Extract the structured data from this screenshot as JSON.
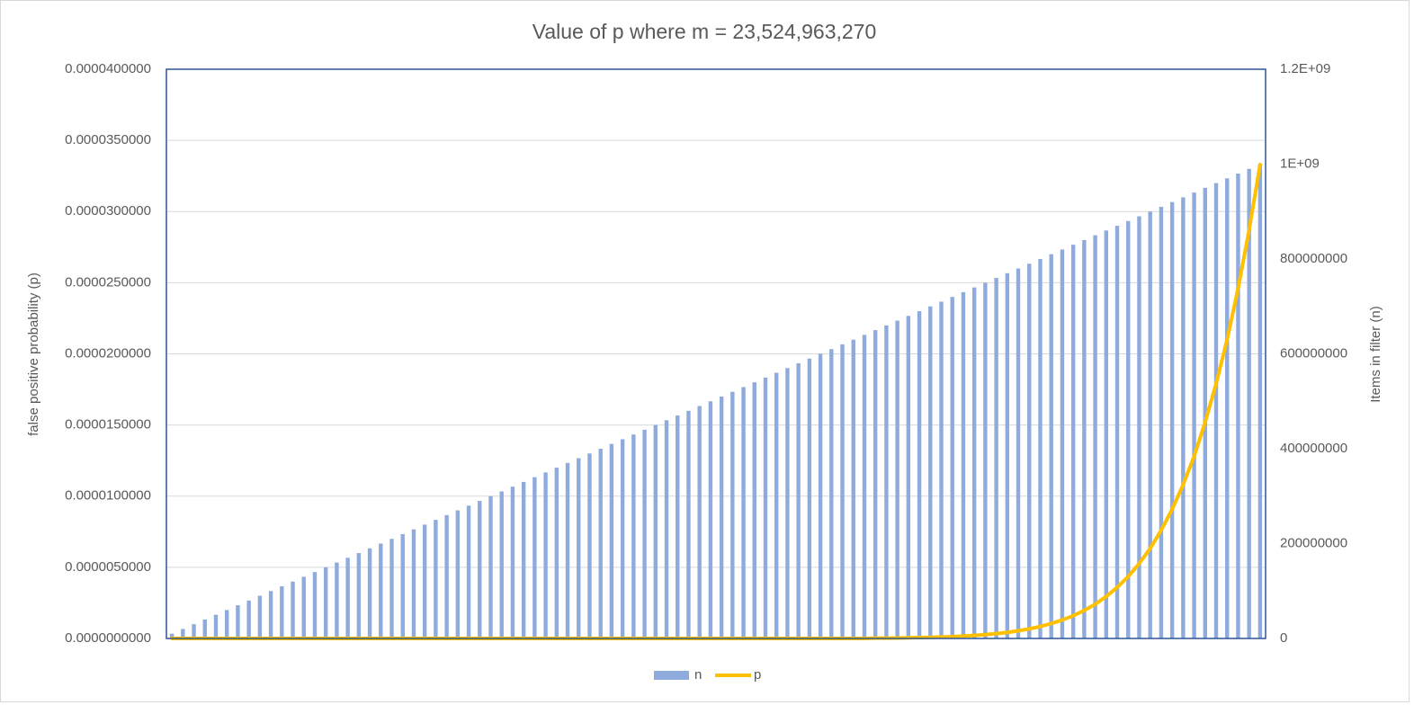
{
  "chart_data": {
    "type": "bar",
    "title": "Value of p where m = 23,524,963,270",
    "y_label": "false positive probability (p)",
    "y2_label": "Items in filter (n)",
    "categories": [
      null,
      null,
      null,
      null,
      null,
      null,
      null,
      null,
      null,
      null,
      null,
      null,
      null,
      null,
      null,
      null,
      null,
      null,
      null,
      null,
      null,
      null,
      null,
      null,
      null,
      null,
      null,
      null,
      null,
      null,
      null,
      null,
      null,
      null,
      null,
      null,
      null,
      null,
      null,
      null,
      null,
      null,
      null,
      null,
      null,
      null,
      null,
      null,
      null,
      null,
      null,
      null,
      null,
      null,
      null,
      null,
      null,
      null,
      null,
      null,
      null,
      null,
      null,
      null,
      null,
      null,
      null,
      null,
      null,
      null,
      null,
      null,
      null,
      null,
      null,
      null,
      null,
      null,
      null,
      null,
      null,
      null,
      null,
      null,
      null,
      null,
      null,
      null,
      null,
      null,
      null,
      null,
      null,
      null,
      null,
      null,
      null,
      null,
      null,
      null
    ],
    "series": [
      {
        "name": "n",
        "type": "bar",
        "axis": "y2",
        "color": "#8faadc",
        "values": [
          10000000,
          20000000,
          30000000,
          40000000,
          50000000,
          60000000,
          70000000,
          80000000,
          90000000,
          100000000,
          110000000,
          120000000,
          130000000,
          140000000,
          150000000,
          160000000,
          170000000,
          180000000,
          190000000,
          200000000,
          210000000,
          220000000,
          230000000,
          240000000,
          250000000,
          260000000,
          270000000,
          280000000,
          290000000,
          300000000,
          310000000,
          320000000,
          330000000,
          340000000,
          350000000,
          360000000,
          370000000,
          380000000,
          390000000,
          400000000,
          410000000,
          420000000,
          430000000,
          440000000,
          450000000,
          460000000,
          470000000,
          480000000,
          490000000,
          500000000,
          510000000,
          520000000,
          530000000,
          540000000,
          550000000,
          560000000,
          570000000,
          580000000,
          590000000,
          600000000,
          610000000,
          620000000,
          630000000,
          640000000,
          650000000,
          660000000,
          670000000,
          680000000,
          690000000,
          700000000,
          710000000,
          720000000,
          730000000,
          740000000,
          750000000,
          760000000,
          770000000,
          780000000,
          790000000,
          800000000,
          810000000,
          820000000,
          830000000,
          840000000,
          850000000,
          860000000,
          870000000,
          880000000,
          890000000,
          900000000,
          910000000,
          920000000,
          930000000,
          940000000,
          950000000,
          960000000,
          970000000,
          980000000,
          990000000,
          1000000000
        ]
      },
      {
        "name": "p",
        "type": "line",
        "axis": "y",
        "color": "#ffc000",
        "values": [
          0,
          0,
          0,
          0,
          0,
          0,
          0,
          0,
          0,
          0,
          0,
          0,
          0,
          0,
          0,
          0,
          0,
          0,
          0,
          0,
          0,
          0,
          0,
          0,
          0,
          0,
          0,
          0,
          0,
          0,
          0,
          0,
          0,
          0,
          0,
          0,
          0,
          0,
          0,
          0,
          0,
          0,
          0,
          0,
          0,
          0,
          0,
          0,
          0,
          0,
          0,
          0,
          0,
          0,
          0,
          0,
          0,
          0,
          0,
          0,
          0,
          0,
          0,
          0,
          2.1e-08,
          2.7e-08,
          3.5e-08,
          4.6e-08,
          6e-08,
          7.77e-08,
          1e-07,
          1.29e-07,
          1.65e-07,
          2.1e-07,
          2.67e-07,
          3.39e-07,
          4.27e-07,
          5.37e-07,
          6.72e-07,
          8.39e-07,
          1.05e-06,
          1.3e-06,
          1.6e-06,
          1.97e-06,
          2.41e-06,
          2.95e-06,
          3.59e-06,
          4.35e-06,
          5.26e-06,
          6.33e-06,
          7.6e-06,
          9.08e-06,
          1.08e-05,
          1.28e-05,
          1.52e-05,
          1.79e-05,
          2.1e-05,
          2.46e-05,
          2.87e-05,
          3.33e-05
        ]
      }
    ],
    "ylim": [
      0,
      4e-05
    ],
    "yticks": [
      {
        "value": 0,
        "label": "0.0000000000"
      },
      {
        "value": 5e-06,
        "label": "0.0000050000"
      },
      {
        "value": 1e-05,
        "label": "0.0000100000"
      },
      {
        "value": 1.5e-05,
        "label": "0.0000150000"
      },
      {
        "value": 2e-05,
        "label": "0.0000200000"
      },
      {
        "value": 2.5e-05,
        "label": "0.0000250000"
      },
      {
        "value": 3e-05,
        "label": "0.0000300000"
      },
      {
        "value": 3.5e-05,
        "label": "0.0000350000"
      },
      {
        "value": 4e-05,
        "label": "0.0000400000"
      }
    ],
    "y2lim": [
      0,
      1200000000
    ],
    "y2ticks": [
      0,
      200000000,
      400000000,
      600000000,
      800000000,
      {
        "value": 1000000000,
        "label": "1E+09"
      },
      {
        "value": 1200000000,
        "label": "1.2E+09"
      }
    ],
    "grid": true,
    "legend": "bottom"
  }
}
